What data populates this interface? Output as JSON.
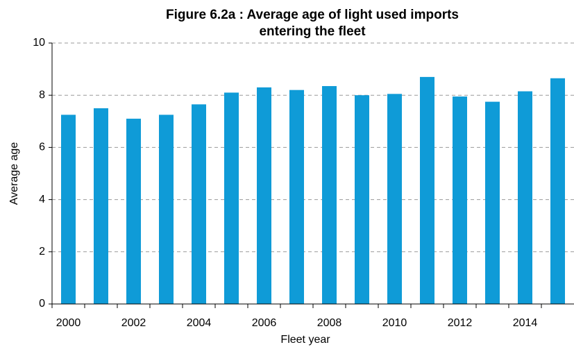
{
  "chart_data": {
    "type": "bar",
    "title": [
      "Figure 6.2a : Average age of light  used imports",
      "entering the fleet"
    ],
    "x_label": "Fleet year",
    "y_label": "Average age",
    "categories": [
      "2000",
      null,
      "2002",
      null,
      "2004",
      null,
      "2006",
      null,
      "2008",
      null,
      "2010",
      null,
      "2012",
      null,
      "2014",
      null
    ],
    "values": [
      7.25,
      7.5,
      7.1,
      7.25,
      7.65,
      8.1,
      8.3,
      8.2,
      8.35,
      8.0,
      8.05,
      8.7,
      7.95,
      7.75,
      8.15,
      8.65
    ],
    "color": "#0f9bd7",
    "ylim": [
      0,
      10
    ],
    "yticks": [
      0,
      2,
      4,
      6,
      8,
      10
    ],
    "grid": true
  }
}
